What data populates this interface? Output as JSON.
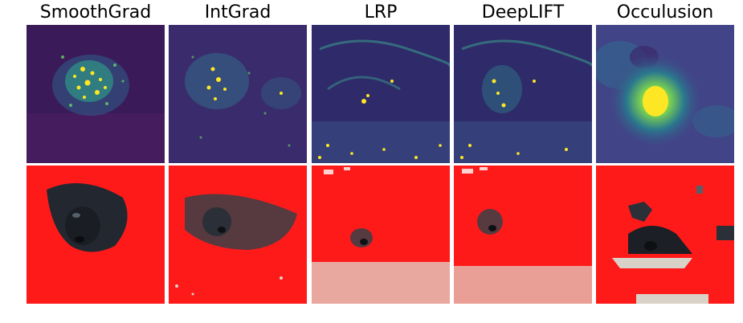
{
  "figure": {
    "columns": [
      {
        "title": "SmoothGrad"
      },
      {
        "title": "IntGrad"
      },
      {
        "title": "LRP"
      },
      {
        "title": "DeepLIFT"
      },
      {
        "title": "Occulusion"
      }
    ]
  },
  "colors": {
    "heat_low": "#3b0f4f",
    "heat_mid": "#2a788e",
    "heat_high": "#fde725",
    "mask_red": "#ff1a1a",
    "photo_dark": "#1b1f28",
    "photo_sand": "#d8d2c8"
  }
}
